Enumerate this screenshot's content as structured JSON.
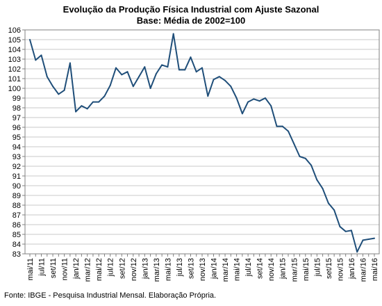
{
  "chart_data": {
    "type": "line",
    "title": "Evolução da Produção Física Industrial com Ajuste Sazonal",
    "subtitle": "Base: Média de 2002=100",
    "xlabel": "",
    "ylabel": "",
    "ylim": [
      83,
      106
    ],
    "y_ticks": [
      83,
      84,
      85,
      86,
      87,
      88,
      89,
      90,
      91,
      92,
      93,
      94,
      95,
      96,
      97,
      98,
      99,
      100,
      101,
      102,
      103,
      104,
      105,
      106
    ],
    "grid": true,
    "legend": "none",
    "line_color": "#1f4e79",
    "x_tick_labels": [
      "mai/11",
      "jul/11",
      "set/11",
      "nov/11",
      "jan/12",
      "mar/12",
      "mai/12",
      "jul/12",
      "set/12",
      "nov/12",
      "jan/13",
      "mar/13",
      "mai/13",
      "jul/13",
      "set/13",
      "nov/13",
      "jan/14",
      "mar/14",
      "mai/14",
      "jul/14",
      "set/14",
      "nov/14",
      "jan/15",
      "mar/15",
      "mai/15",
      "jul/15",
      "set/15",
      "nov/15",
      "jan/16",
      "mar/16",
      "mai/16"
    ],
    "x": [
      "mai/11",
      "jun/11",
      "jul/11",
      "ago/11",
      "set/11",
      "out/11",
      "nov/11",
      "dez/11",
      "jan/12",
      "fev/12",
      "mar/12",
      "abr/12",
      "mai/12",
      "jun/12",
      "jul/12",
      "ago/12",
      "set/12",
      "out/12",
      "nov/12",
      "dez/12",
      "jan/13",
      "fev/13",
      "mar/13",
      "abr/13",
      "mai/13",
      "jun/13",
      "jul/13",
      "ago/13",
      "set/13",
      "out/13",
      "nov/13",
      "dez/13",
      "jan/14",
      "fev/14",
      "mar/14",
      "abr/14",
      "mai/14",
      "jun/14",
      "jul/14",
      "ago/14",
      "set/14",
      "out/14",
      "nov/14",
      "dez/14",
      "jan/15",
      "fev/15",
      "mar/15",
      "abr/15",
      "mai/15",
      "jun/15",
      "jul/15",
      "ago/15",
      "set/15",
      "out/15",
      "nov/15",
      "dez/15",
      "jan/16",
      "fev/16",
      "mar/16",
      "abr/16",
      "mai/16"
    ],
    "series": [
      {
        "values": [
          105.0,
          102.9,
          103.4,
          101.2,
          100.2,
          99.4,
          99.8,
          102.6,
          97.6,
          98.2,
          97.9,
          98.6,
          98.6,
          99.2,
          100.3,
          102.1,
          101.4,
          101.7,
          100.2,
          101.2,
          102.2,
          100.0,
          101.5,
          102.4,
          102.2,
          105.6,
          101.9,
          101.9,
          103.2,
          101.7,
          102.1,
          99.2,
          100.9,
          101.2,
          100.8,
          100.2,
          99.0,
          97.4,
          98.6,
          98.9,
          98.7,
          99.0,
          98.2,
          96.1,
          96.1,
          95.6,
          94.3,
          93.0,
          92.8,
          92.1,
          90.6,
          89.7,
          88.2,
          87.5,
          85.8,
          85.3,
          85.4,
          83.2,
          84.4,
          84.5,
          84.6
        ]
      }
    ]
  },
  "source": "Fonte: IBGE - Pesquisa Industrial Mensal. Elaboração Própria."
}
